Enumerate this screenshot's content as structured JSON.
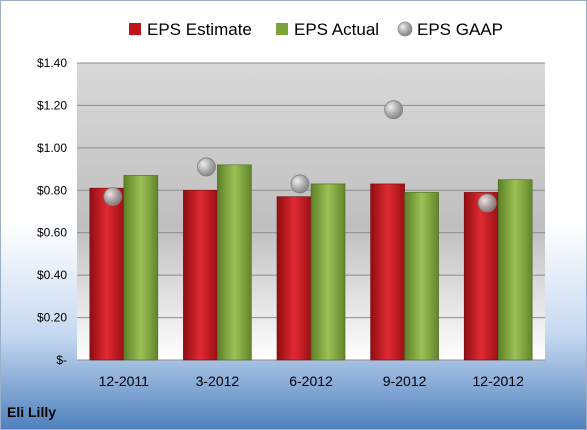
{
  "company": "Eli Lilly",
  "chart_data": {
    "type": "bar",
    "title": "",
    "xlabel": "",
    "ylabel": "",
    "categories": [
      "12-2011",
      "3-2012",
      "6-2012",
      "9-2012",
      "12-2012"
    ],
    "ylim": [
      0,
      1.4
    ],
    "yticks": [
      0,
      0.2,
      0.4,
      0.6,
      0.8,
      1.0,
      1.2,
      1.4
    ],
    "ytick_labels": [
      "$-",
      "$0.20",
      "$0.40",
      "$0.60",
      "$0.80",
      "$1.00",
      "$1.20",
      "$1.40"
    ],
    "grid": true,
    "legend_position": "top",
    "series": [
      {
        "name": "EPS Estimate",
        "kind": "bar",
        "color": "#c0141b",
        "values": [
          0.81,
          0.8,
          0.77,
          0.83,
          0.79
        ]
      },
      {
        "name": "EPS Actual",
        "kind": "bar",
        "color": "#7ea33b",
        "values": [
          0.87,
          0.92,
          0.83,
          0.79,
          0.85
        ]
      },
      {
        "name": "EPS GAAP",
        "kind": "marker",
        "color": "#a6a6a6",
        "values": [
          0.77,
          0.91,
          0.83,
          1.18,
          0.74
        ]
      }
    ]
  }
}
